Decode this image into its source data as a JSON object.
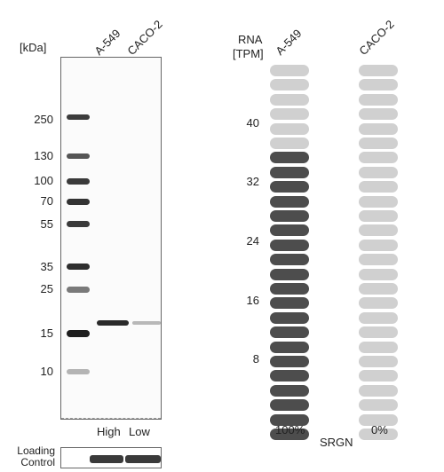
{
  "western_blot": {
    "unit_label": "[kDa]",
    "lane_labels": [
      "A-549",
      "CACO-2"
    ],
    "markers": [
      "250",
      "130",
      "100",
      "70",
      "55",
      "35",
      "25",
      "15",
      "10"
    ],
    "level_labels": [
      "High",
      "Low"
    ],
    "loading_control_label": "Loading Control"
  },
  "rna_panel": {
    "header_line1": "RNA",
    "header_line2": "[TPM]",
    "column_labels": [
      "A-549",
      "CACO-2"
    ],
    "tick_labels": [
      "40",
      "32",
      "24",
      "16",
      "8"
    ],
    "percent_labels": [
      "100%",
      "0%"
    ],
    "gene": "SRGN",
    "pill_count": 26,
    "filled_counts": [
      20,
      0
    ],
    "colors": {
      "filled": "#4d4d4d",
      "empty": "#d0d0d0"
    }
  }
}
